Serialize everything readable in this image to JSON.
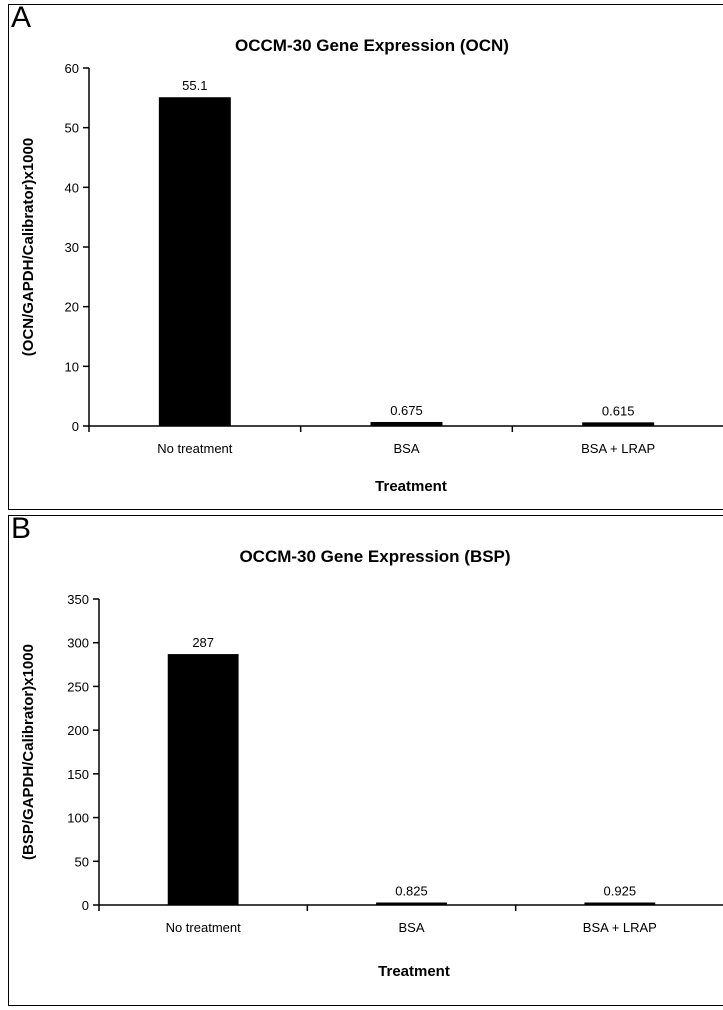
{
  "chart_data": [
    {
      "type": "bar",
      "panel_label": "A",
      "title": "OCCM-30 Gene Expression (OCN)",
      "xlabel": "Treatment",
      "ylabel": "(OCN/GAPDH/Calibrator)x1000",
      "categories": [
        "No treatment",
        "BSA",
        "BSA + LRAP"
      ],
      "values": [
        55.1,
        0.675,
        0.615
      ],
      "data_labels": [
        "55.1",
        "0.675",
        "0.615"
      ],
      "ylim": [
        0,
        60
      ],
      "yticks": [
        0,
        10,
        20,
        30,
        40,
        50,
        60
      ],
      "bar_color": "#000000",
      "grid": false,
      "legend": "none"
    },
    {
      "type": "bar",
      "panel_label": "B",
      "title": "OCCM-30 Gene Expression (BSP)",
      "xlabel": "Treatment",
      "ylabel": "(BSP/GAPDH/Calibrator)x1000",
      "categories": [
        "No treatment",
        "BSA",
        "BSA + LRAP"
      ],
      "values": [
        287,
        0.825,
        0.925
      ],
      "data_labels": [
        "287",
        "0.825",
        "0.925"
      ],
      "ylim": [
        0,
        350
      ],
      "yticks": [
        0,
        50,
        100,
        150,
        200,
        250,
        300,
        350
      ],
      "bar_color": "#000000",
      "grid": false,
      "legend": "none"
    }
  ]
}
